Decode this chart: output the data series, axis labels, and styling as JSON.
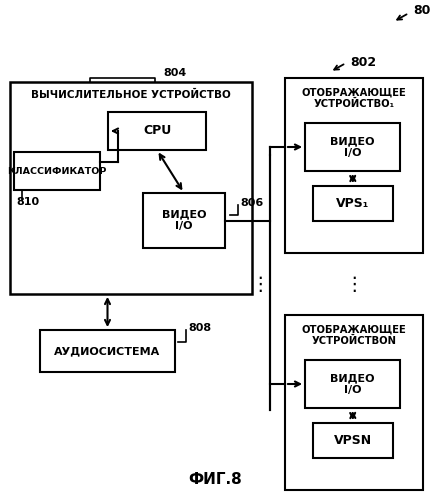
{
  "bg_color": "#ffffff",
  "fig_label": "ФИГ.8",
  "label_800": "800",
  "label_802": "802",
  "label_804": "804",
  "label_806": "806",
  "label_808": "808",
  "label_810": "810",
  "compute_title": "ВЫЧИСЛИТЕЛЬНОЕ УСТРОЙСТВО",
  "display_title_1": "ОТОБРАЖАЮЩЕЕ\nУСТРОЙСТВО₁",
  "display_title_n": "ОТОБРАЖАЮЩЕЕ\nУСТРОЙСТВОN",
  "cpu_label": "CPU",
  "classifier_label": "КЛАССИФИКАТОР",
  "video_io_label": "ВИДЕО\nI/O",
  "audio_label": "АУДИОСИСТЕМА",
  "vps1_label": "VPS₁",
  "vpsn_label": "VPSΝ"
}
